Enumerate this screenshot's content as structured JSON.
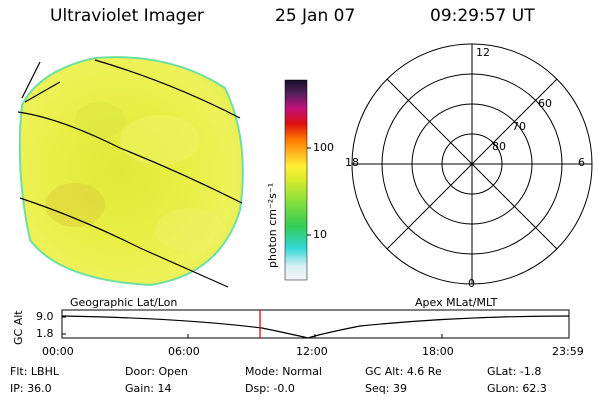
{
  "header": {
    "instrument": "Ultraviolet Imager",
    "date": "25 Jan 07",
    "time": "09:29:57 UT"
  },
  "colorbar": {
    "unit_label": "photon cm⁻²s⁻¹",
    "ticks": [
      "100",
      "10"
    ]
  },
  "polar_plot": {
    "mlt_labels": {
      "top": "12",
      "left": "18",
      "right": "6",
      "bottom": "0"
    },
    "lat_labels": [
      "60",
      "70",
      "80"
    ]
  },
  "timeline": {
    "left_title": "Geographic Lat/Lon",
    "right_title": "Apex MLat/MLT",
    "y_axis_label": "GC Alt",
    "y_ticks": [
      "9.0",
      "1.8"
    ],
    "x_ticks": [
      "00:00",
      "06:00",
      "12:00",
      "18:00",
      "23:59"
    ],
    "marker_time": "09:29:57"
  },
  "status": {
    "row1": [
      {
        "label": "Flt:",
        "value": "LBHL"
      },
      {
        "label": "Door:",
        "value": "Open"
      },
      {
        "label": "Mode:",
        "value": "Normal"
      },
      {
        "label": "GC Alt:",
        "value": "4.6 Re"
      },
      {
        "label": "GLat:",
        "value": "-1.8"
      }
    ],
    "row2": [
      {
        "label": "IP:",
        "value": "36.0"
      },
      {
        "label": "Gain:",
        "value": "14"
      },
      {
        "label": "Dsp:",
        "value": "-0.0"
      },
      {
        "label": "Seq:",
        "value": "39"
      },
      {
        "label": "GLon:",
        "value": "62.3"
      }
    ]
  },
  "colors": {
    "earth_fill": "#e6ec3a",
    "earth_edge": "#6fe0a0",
    "marker": "#cc0000"
  }
}
